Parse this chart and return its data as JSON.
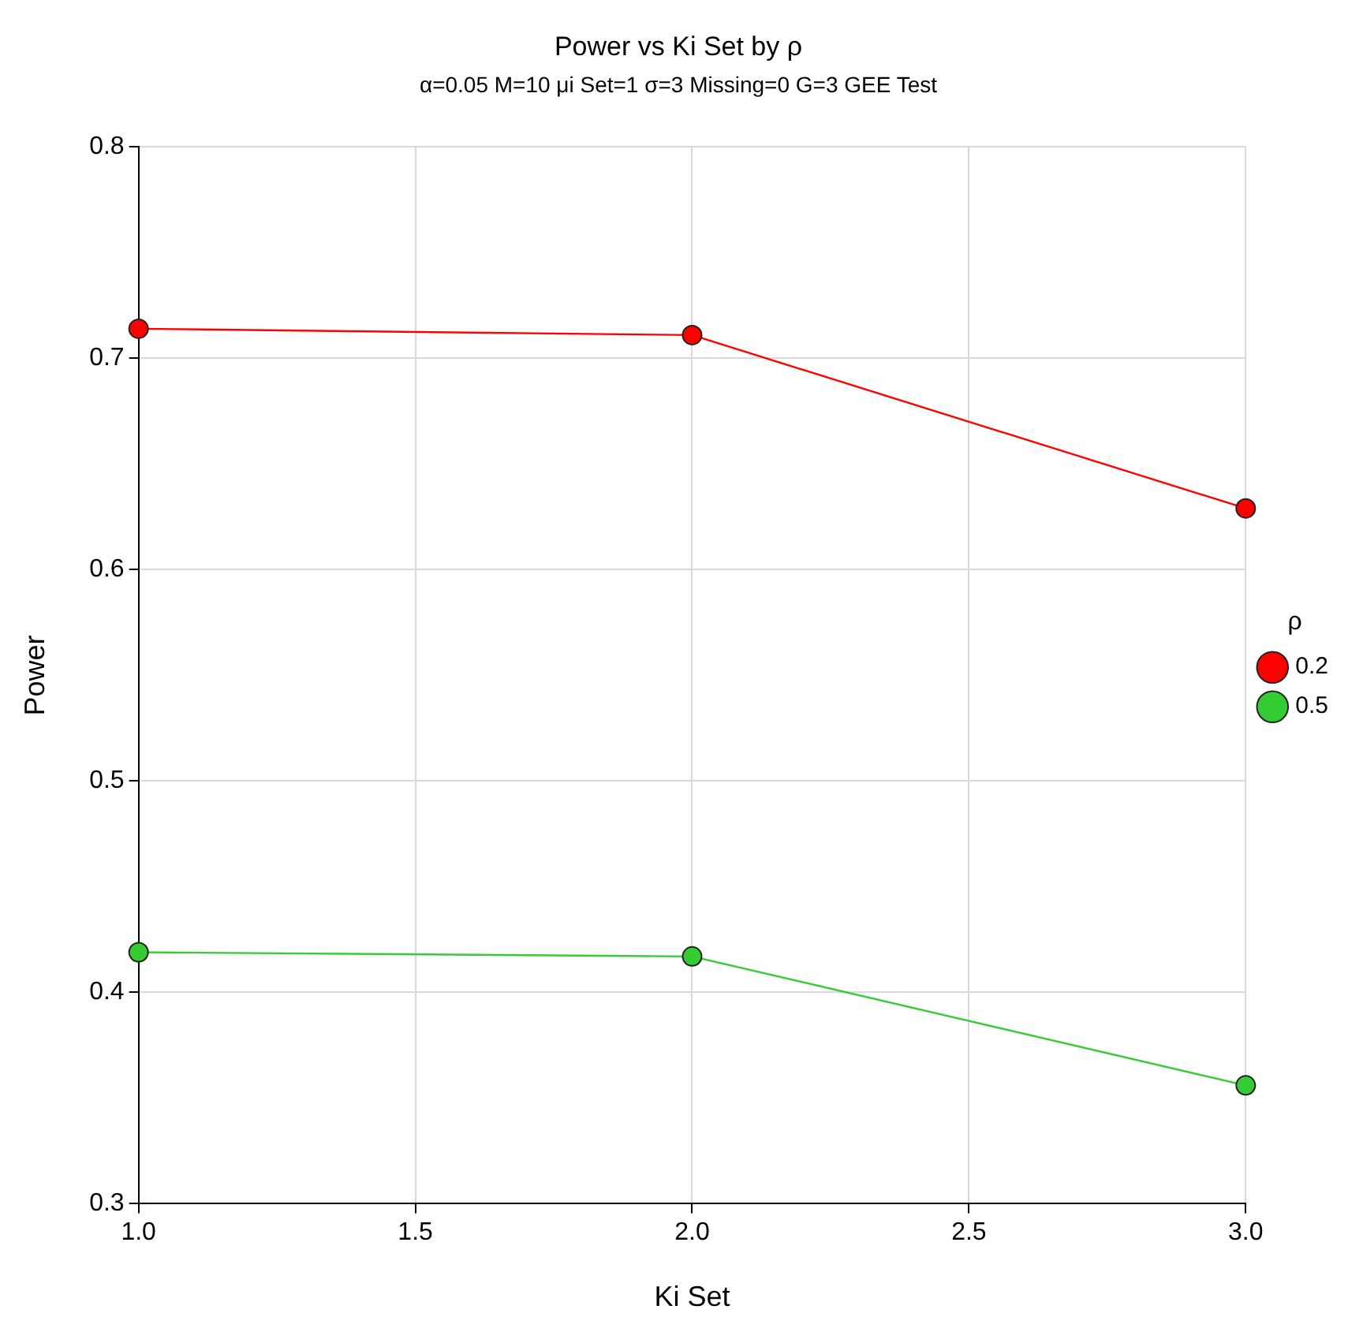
{
  "chart_data": {
    "type": "line",
    "title": "Power vs Ki Set by ρ",
    "subtitle": "α=0.05 M=10 μi Set=1 σ=3 Missing=0 G=3 GEE Test",
    "xlabel": "Ki Set",
    "ylabel": "Power",
    "legend_title": "ρ",
    "x": [
      1,
      2,
      3
    ],
    "series": [
      {
        "name": "0.2",
        "color": "#ff0000",
        "values": [
          0.714,
          0.711,
          0.629
        ]
      },
      {
        "name": "0.5",
        "color": "#33cc33",
        "values": [
          0.419,
          0.417,
          0.356
        ]
      }
    ],
    "xlim": [
      1,
      3
    ],
    "xticks": [
      {
        "value": 1,
        "label": "1.0"
      },
      {
        "value": 1.5,
        "label": "1.5"
      },
      {
        "value": 2,
        "label": "2.0"
      },
      {
        "value": 2.5,
        "label": "2.5"
      },
      {
        "value": 3,
        "label": "3.0"
      }
    ],
    "ylim": [
      0.3,
      0.8
    ],
    "yticks": [
      0.3,
      0.4,
      0.5,
      0.6,
      0.7,
      0.8
    ],
    "grid": true,
    "legend": "right",
    "marker": "circle",
    "line_style": "solid"
  }
}
